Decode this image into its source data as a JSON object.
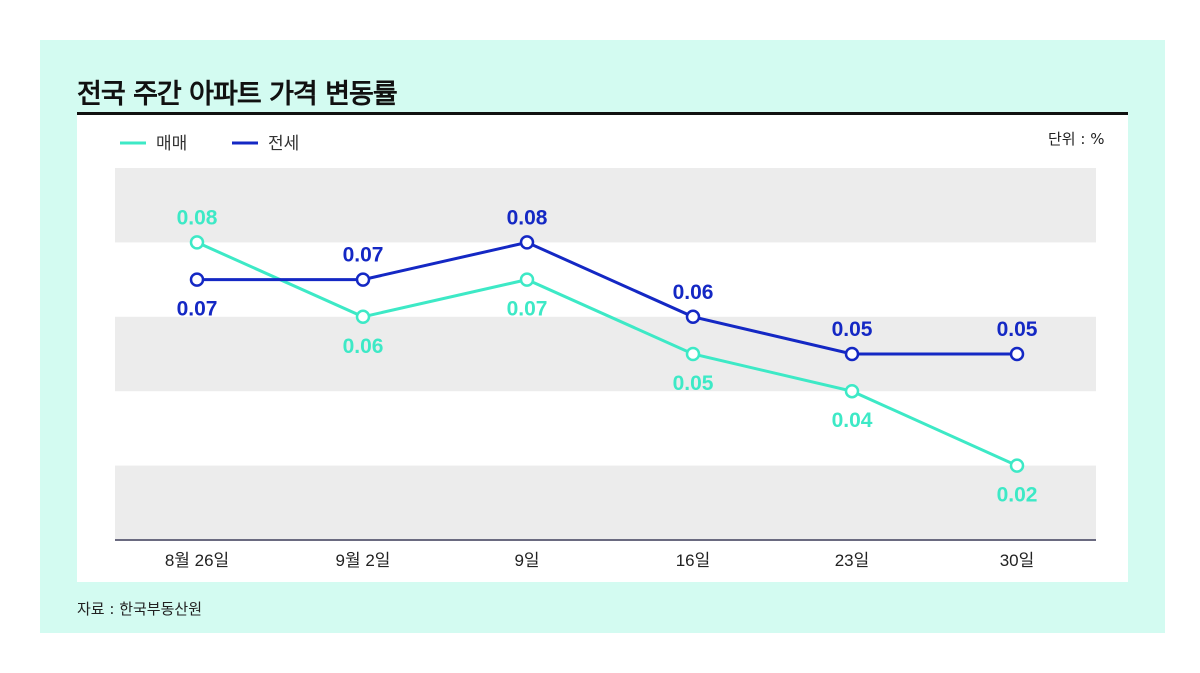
{
  "chart_data": {
    "type": "line",
    "title": "전국 주간 아파트 가격 변동률",
    "unit_label": "단위 : %",
    "source": "자료 : 한국부동산원",
    "categories": [
      "8월 26일",
      "9월 2일",
      "9일",
      "16일",
      "23일",
      "30일"
    ],
    "series": [
      {
        "name": "매매",
        "color": "#3de9c6",
        "values": [
          0.08,
          0.06,
          0.07,
          0.05,
          0.04,
          0.02
        ],
        "label_pos": [
          "above",
          "below",
          "below",
          "below",
          "below",
          "below"
        ]
      },
      {
        "name": "전세",
        "color": "#1428c4",
        "values": [
          0.07,
          0.07,
          0.08,
          0.06,
          0.05,
          0.05
        ],
        "label_pos": [
          "below",
          "above",
          "above",
          "above",
          "above",
          "above"
        ]
      }
    ],
    "ylim": [
      0,
      0.1
    ],
    "grid": "alternating horizontal bands",
    "legend": "top-left"
  }
}
